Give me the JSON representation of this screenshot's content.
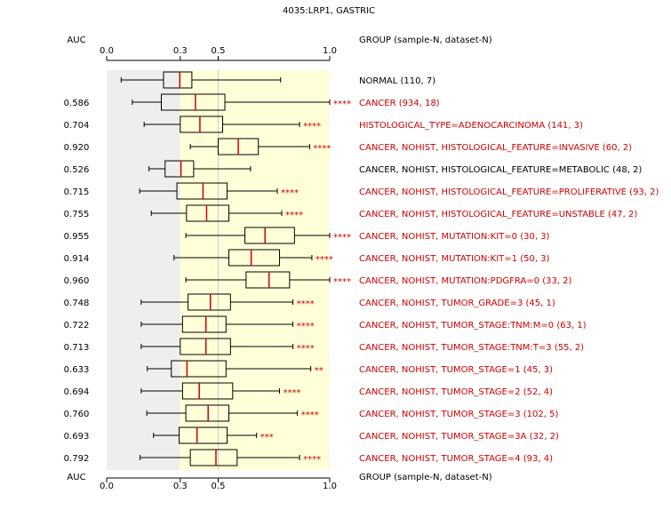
{
  "chart_data": {
    "type": "boxplot",
    "title": "4035:LRP1, GASTRIC",
    "auc_header": "AUC",
    "group_header": "GROUP (sample-N, dataset-N)",
    "xlim": [
      0,
      1
    ],
    "ticks": [
      "0.0",
      "0.3",
      "0.5",
      "1.0"
    ],
    "tick_values": [
      0,
      0.33,
      0.5,
      1
    ],
    "reference_line": 0.5,
    "shaded_gray_range": [
      0,
      0.33
    ],
    "shaded_yellow_range": [
      0.33,
      1
    ],
    "colors": {
      "gray_band": "#eeeeee",
      "yellow_band": "#ffffd8",
      "box_edge": "#000000",
      "median": "#cc0000",
      "significant_label": "#cc0000",
      "normal_label": "#000000",
      "reference_line": "#cccccc"
    },
    "rows": [
      {
        "label": "NORMAL (110, 7)",
        "auc": "",
        "stars": "",
        "highlight": false,
        "whisker_low": 0.065,
        "q1": 0.255,
        "median": 0.328,
        "q3": 0.382,
        "whisker_high": 0.78
      },
      {
        "label": "CANCER (934, 18)",
        "auc": "0.586",
        "stars": "****",
        "highlight": true,
        "whisker_low": 0.115,
        "q1": 0.245,
        "median": 0.398,
        "q3": 0.53,
        "whisker_high": 1.0
      },
      {
        "label": "HISTOLOGICAL_TYPE=ADENOCARCINOMA (141, 3)",
        "auc": "0.704",
        "stars": "****",
        "highlight": true,
        "whisker_low": 0.168,
        "q1": 0.33,
        "median": 0.418,
        "q3": 0.52,
        "whisker_high": 0.865
      },
      {
        "label": "CANCER, NOHIST, HISTOLOGICAL_FEATURE=INVASIVE (60, 2)",
        "auc": "0.920",
        "stars": "****",
        "highlight": true,
        "whisker_low": 0.375,
        "q1": 0.5,
        "median": 0.59,
        "q3": 0.68,
        "whisker_high": 0.91
      },
      {
        "label": "CANCER, NOHIST, HISTOLOGICAL_FEATURE=METABOLIC (48, 2)",
        "auc": "0.526",
        "stars": "",
        "highlight": false,
        "whisker_low": 0.19,
        "q1": 0.262,
        "median": 0.333,
        "q3": 0.39,
        "whisker_high": 0.645
      },
      {
        "label": "CANCER, NOHIST, HISTOLOGICAL_FEATURE=PROLIFERATIVE (93, 2)",
        "auc": "0.715",
        "stars": "****",
        "highlight": true,
        "whisker_low": 0.148,
        "q1": 0.315,
        "median": 0.432,
        "q3": 0.54,
        "whisker_high": 0.765
      },
      {
        "label": "CANCER, NOHIST, HISTOLOGICAL_FEATURE=UNSTABLE (47, 2)",
        "auc": "0.755",
        "stars": "****",
        "highlight": true,
        "whisker_low": 0.2,
        "q1": 0.358,
        "median": 0.448,
        "q3": 0.548,
        "whisker_high": 0.785
      },
      {
        "label": "CANCER, NOHIST, MUTATION:KIT=0 (30, 3)",
        "auc": "0.955",
        "stars": "****",
        "highlight": true,
        "whisker_low": 0.355,
        "q1": 0.62,
        "median": 0.71,
        "q3": 0.842,
        "whisker_high": 1.0
      },
      {
        "label": "CANCER, NOHIST, MUTATION:KIT=1 (50, 3)",
        "auc": "0.914",
        "stars": "****",
        "highlight": true,
        "whisker_low": 0.302,
        "q1": 0.548,
        "median": 0.648,
        "q3": 0.775,
        "whisker_high": 0.92
      },
      {
        "label": "CANCER, NOHIST, MUTATION:PDGFRA=0 (33, 2)",
        "auc": "0.960",
        "stars": "****",
        "highlight": true,
        "whisker_low": 0.355,
        "q1": 0.625,
        "median": 0.728,
        "q3": 0.82,
        "whisker_high": 1.0
      },
      {
        "label": "CANCER, NOHIST, TUMOR_GRADE=3 (45, 1)",
        "auc": "0.748",
        "stars": "****",
        "highlight": true,
        "whisker_low": 0.155,
        "q1": 0.365,
        "median": 0.465,
        "q3": 0.555,
        "whisker_high": 0.835
      },
      {
        "label": "CANCER, NOHIST, TUMOR_STAGE:TNM:M=0 (63, 1)",
        "auc": "0.722",
        "stars": "****",
        "highlight": true,
        "whisker_low": 0.155,
        "q1": 0.34,
        "median": 0.445,
        "q3": 0.535,
        "whisker_high": 0.835
      },
      {
        "label": "CANCER, NOHIST, TUMOR_STAGE:TNM:T=3 (55, 2)",
        "auc": "0.713",
        "stars": "****",
        "highlight": true,
        "whisker_low": 0.155,
        "q1": 0.33,
        "median": 0.445,
        "q3": 0.555,
        "whisker_high": 0.835
      },
      {
        "label": "CANCER, NOHIST, TUMOR_STAGE=1 (45, 3)",
        "auc": "0.633",
        "stars": "**",
        "highlight": true,
        "whisker_low": 0.182,
        "q1": 0.29,
        "median": 0.36,
        "q3": 0.535,
        "whisker_high": 0.915
      },
      {
        "label": "CANCER, NOHIST, TUMOR_STAGE=2 (52, 4)",
        "auc": "0.694",
        "stars": "****",
        "highlight": true,
        "whisker_low": 0.155,
        "q1": 0.34,
        "median": 0.415,
        "q3": 0.565,
        "whisker_high": 0.775
      },
      {
        "label": "CANCER, NOHIST, TUMOR_STAGE=3 (102, 5)",
        "auc": "0.760",
        "stars": "****",
        "highlight": true,
        "whisker_low": 0.18,
        "q1": 0.355,
        "median": 0.455,
        "q3": 0.548,
        "whisker_high": 0.855
      },
      {
        "label": "CANCER, NOHIST, TUMOR_STAGE=3A (32, 2)",
        "auc": "0.693",
        "stars": "***",
        "highlight": true,
        "whisker_low": 0.21,
        "q1": 0.325,
        "median": 0.405,
        "q3": 0.54,
        "whisker_high": 0.672
      },
      {
        "label": "CANCER, NOHIST, TUMOR_STAGE=4 (93, 4)",
        "auc": "0.792",
        "stars": "****",
        "highlight": true,
        "whisker_low": 0.15,
        "q1": 0.375,
        "median": 0.49,
        "q3": 0.585,
        "whisker_high": 0.865
      }
    ]
  }
}
